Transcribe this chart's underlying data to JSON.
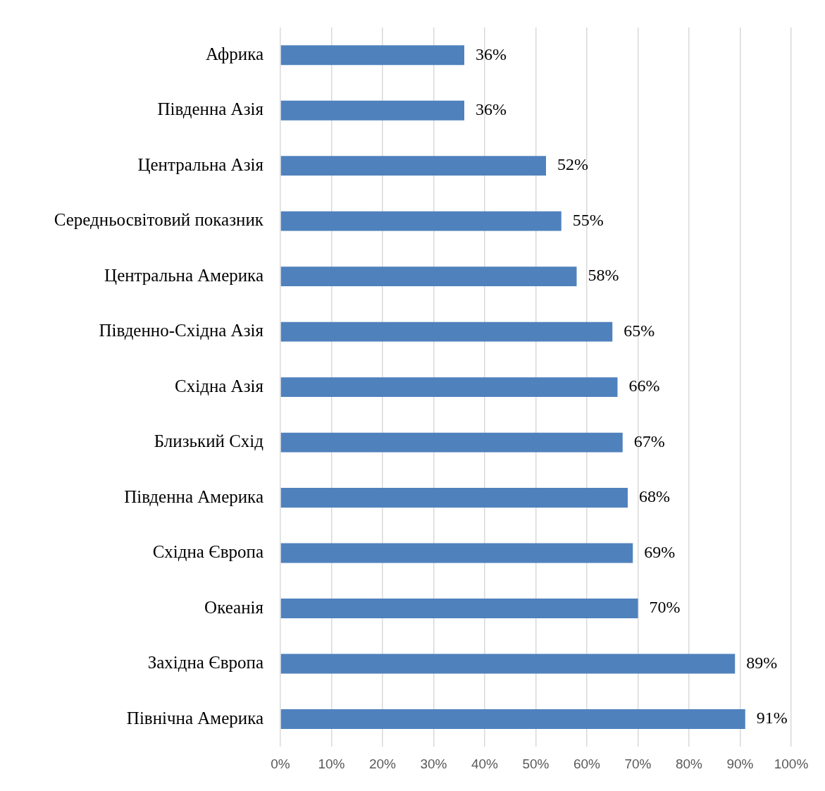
{
  "chart_data": {
    "type": "bar",
    "orientation": "horizontal",
    "categories": [
      "Африка",
      "Південна Азія",
      "Центральна Азія",
      "Середньосвітовий показник",
      "Центральна Америка",
      "Південно-Східна Азія",
      "Східна Азія",
      "Близький Схід",
      "Південна Америка",
      "Східна Європа",
      "Океанія",
      "Західна Європа",
      "Північна Америка"
    ],
    "values": [
      36,
      36,
      52,
      55,
      58,
      65,
      66,
      67,
      68,
      69,
      70,
      89,
      91
    ],
    "value_labels": [
      "36%",
      "36%",
      "52%",
      "55%",
      "58%",
      "65%",
      "66%",
      "67%",
      "68%",
      "69%",
      "70%",
      "89%",
      "91%"
    ],
    "color": "#4f81bd",
    "xlim": [
      0,
      100
    ],
    "xticks": [
      {
        "value": 0,
        "label": "0%"
      },
      {
        "value": 10,
        "label": "10%"
      },
      {
        "value": 20,
        "label": "20%"
      },
      {
        "value": 30,
        "label": "30%"
      },
      {
        "value": 40,
        "label": "40%"
      },
      {
        "value": 50,
        "label": "50%"
      },
      {
        "value": 60,
        "label": "60%"
      },
      {
        "value": 70,
        "label": "70%"
      },
      {
        "value": 80,
        "label": "80%"
      },
      {
        "value": 90,
        "label": "90%"
      },
      {
        "value": 100,
        "label": "100%"
      }
    ],
    "grid": "x"
  }
}
